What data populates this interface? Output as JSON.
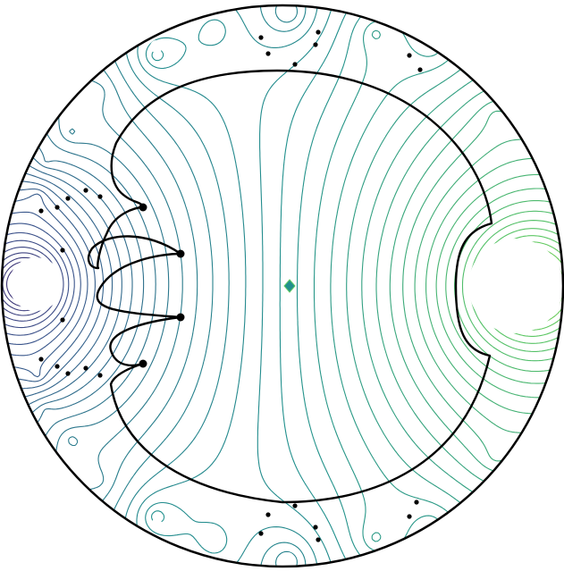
{
  "figure": {
    "kind": "contour-plot-in-disk",
    "colormap": "viridis",
    "colormap_stops": [
      "#440154",
      "#3b528b",
      "#21908d",
      "#5dc962",
      "#fde725"
    ],
    "background_color": "#ffffff",
    "boundary_color": "#000000",
    "inner_curve_color": "#000000",
    "marker_color": "#000000"
  }
}
